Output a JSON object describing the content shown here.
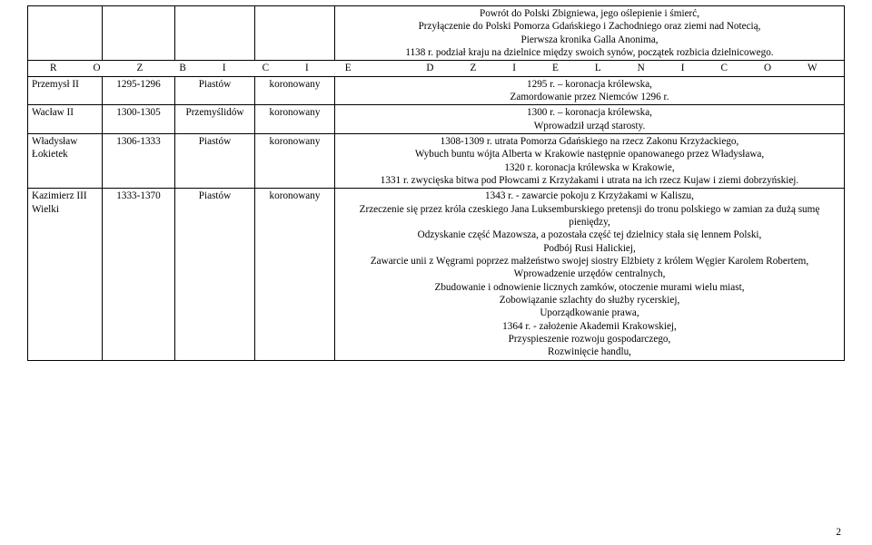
{
  "colors": {
    "text": "#000000",
    "border": "#000000",
    "background": "#ffffff"
  },
  "typography": {
    "font_family": "Times New Roman",
    "font_size_pt": 9,
    "line_height": 1.28
  },
  "table": {
    "top_row": {
      "col0": "",
      "col1": "",
      "col2": "",
      "col3": "",
      "events": "Powrót do Polski Zbigniewa, jego oślepienie i śmierć,\nPrzyłączenie do Polski Pomorza Gdańskiego i Zachodniego oraz ziemi nad Notecią,\nPierwsza kronika Galla Anonima,\n1138 r. podział kraju na dzielnice między swoich synów, początek rozbicia dzielnicowego."
    },
    "section_heading": "ROZBICIE DZIELNICOWE",
    "rows": [
      {
        "ruler": "Przemysł II",
        "years": "1295-1296",
        "dynasty": "Piastów",
        "status": "koronowany",
        "events": "1295 r. – koronacja królewska,\nZamordowanie przez Niemców 1296 r."
      },
      {
        "ruler": "Wacław II",
        "years": "1300-1305",
        "dynasty": "Przemyślidów",
        "status": "koronowany",
        "events": "1300 r. – koronacja królewska,\nWprowadził urząd starosty."
      },
      {
        "ruler": "Władysław Łokietek",
        "years": "1306-1333",
        "dynasty": "Piastów",
        "status": "koronowany",
        "events": "1308-1309 r. utrata Pomorza Gdańskiego na rzecz Zakonu Krzyżackiego,\nWybuch buntu wójta Alberta w Krakowie następnie opanowanego przez Władysława,\n1320 r. koronacja królewska w Krakowie,\n1331 r. zwycięska bitwa pod Płowcami z Krzyżakami i utrata na ich rzecz Kujaw i ziemi dobrzyńskiej."
      },
      {
        "ruler": "Kazimierz III Wielki",
        "years": "1333-1370",
        "dynasty": "Piastów",
        "status": "koronowany",
        "events": "1343 r. - zawarcie pokoju z Krzyżakami w Kaliszu,\nZrzeczenie się przez króla czeskiego Jana Luksemburskiego pretensji do tronu polskiego w zamian za dużą sumę pieniędzy,\nOdzyskanie część Mazowsza, a pozostała część tej dzielnicy stała się lennem Polski,\nPodbój Rusi Halickiej,\nZawarcie unii z Węgrami poprzez małżeństwo swojej siostry Elżbiety z królem Węgier Karolem Robertem,\nWprowadzenie urzędów centralnych,\nZbudowanie i odnowienie licznych zamków, otoczenie murami wielu miast,\nZobowiązanie szlachty do służby rycerskiej,\nUporządkowanie prawa,\n1364 r. - założenie Akademii Krakowskiej,\nPrzyspieszenie rozwoju gospodarczego,\nRozwinięcie handlu,"
      }
    ]
  },
  "page_number": "2"
}
